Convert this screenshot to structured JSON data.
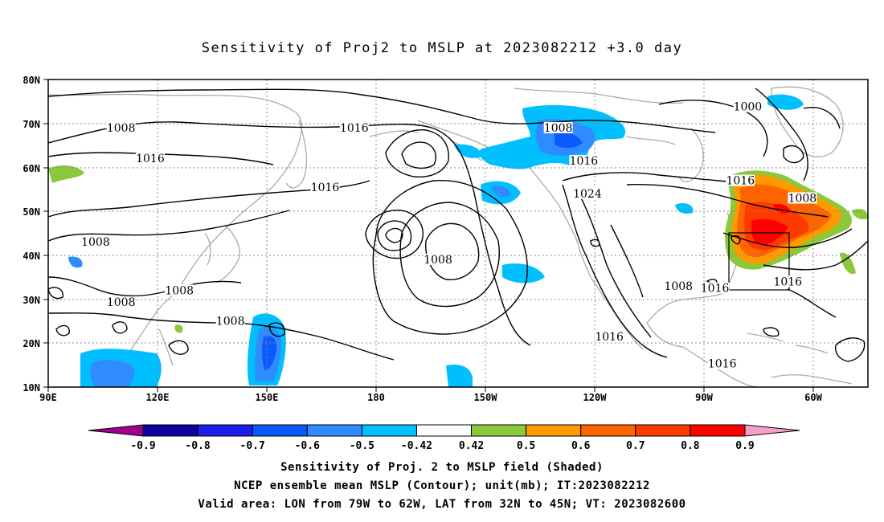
{
  "title": "Sensitivity of Proj2 to MSLP at 2023082212 +3.0 day",
  "lat_ticks": [
    "80N",
    "70N",
    "60N",
    "50N",
    "40N",
    "30N",
    "20N",
    "10N"
  ],
  "lon_ticks": [
    "90E",
    "120E",
    "150E",
    "180",
    "150W",
    "120W",
    "90W",
    "60W"
  ],
  "contour_labels": [
    {
      "text": "1008",
      "lon": 110,
      "lat": 68.5
    },
    {
      "text": "1016",
      "lon": 174,
      "lat": 68.5
    },
    {
      "text": "1008",
      "lon": 230,
      "lat": 68.5
    },
    {
      "text": "1000",
      "lon": 282,
      "lat": 73.3
    },
    {
      "text": "1016",
      "lon": 118,
      "lat": 61.5
    },
    {
      "text": "1016",
      "lon": 237,
      "lat": 61.0
    },
    {
      "text": "1016",
      "lon": 166,
      "lat": 55.0
    },
    {
      "text": "1024",
      "lon": 238,
      "lat": 53.5
    },
    {
      "text": "1016",
      "lon": 280,
      "lat": 56.5
    },
    {
      "text": "1008",
      "lon": 297,
      "lat": 52.5
    },
    {
      "text": "1008",
      "lon": 103,
      "lat": 42.5
    },
    {
      "text": "1008",
      "lon": 197,
      "lat": 38.5
    },
    {
      "text": "1008",
      "lon": 126,
      "lat": 31.5
    },
    {
      "text": "1008",
      "lon": 110,
      "lat": 28.8
    },
    {
      "text": "1008",
      "lon": 263,
      "lat": 32.5
    },
    {
      "text": "1016",
      "lon": 273,
      "lat": 32.0
    },
    {
      "text": "1016",
      "lon": 293,
      "lat": 33.5
    },
    {
      "text": "1008",
      "lon": 140,
      "lat": 24.5
    },
    {
      "text": "1016",
      "lon": 244,
      "lat": 21.0
    },
    {
      "text": "1016",
      "lon": 275,
      "lat": 14.8
    }
  ],
  "colorbar": {
    "labels": [
      "-0.9",
      "-0.8",
      "-0.7",
      "-0.6",
      "-0.5",
      "-0.42",
      "0.42",
      "0.5",
      "0.6",
      "0.7",
      "0.8",
      "0.9"
    ],
    "colors": [
      "#a0008c",
      "#0f00a0",
      "#1e1ee6",
      "#0a5aff",
      "#2e8cff",
      "#00bfff",
      "#ffffff",
      "#8cc83c",
      "#ff9a00",
      "#ff6400",
      "#ff3a00",
      "#ff0000",
      "#f5a0c8"
    ]
  },
  "captions": [
    "Sensitivity of Proj. 2 to MSLP field (Shaded)",
    "NCEP ensemble mean MSLP (Contour); unit(mb); IT:2023082212",
    "Valid area: LON from 79W to 62W, LAT from 32N to 45N; VT: 2023082600"
  ],
  "valid_area": {
    "lon_min": -79,
    "lon_max": -62,
    "lat_min": 32,
    "lat_max": 45
  }
}
